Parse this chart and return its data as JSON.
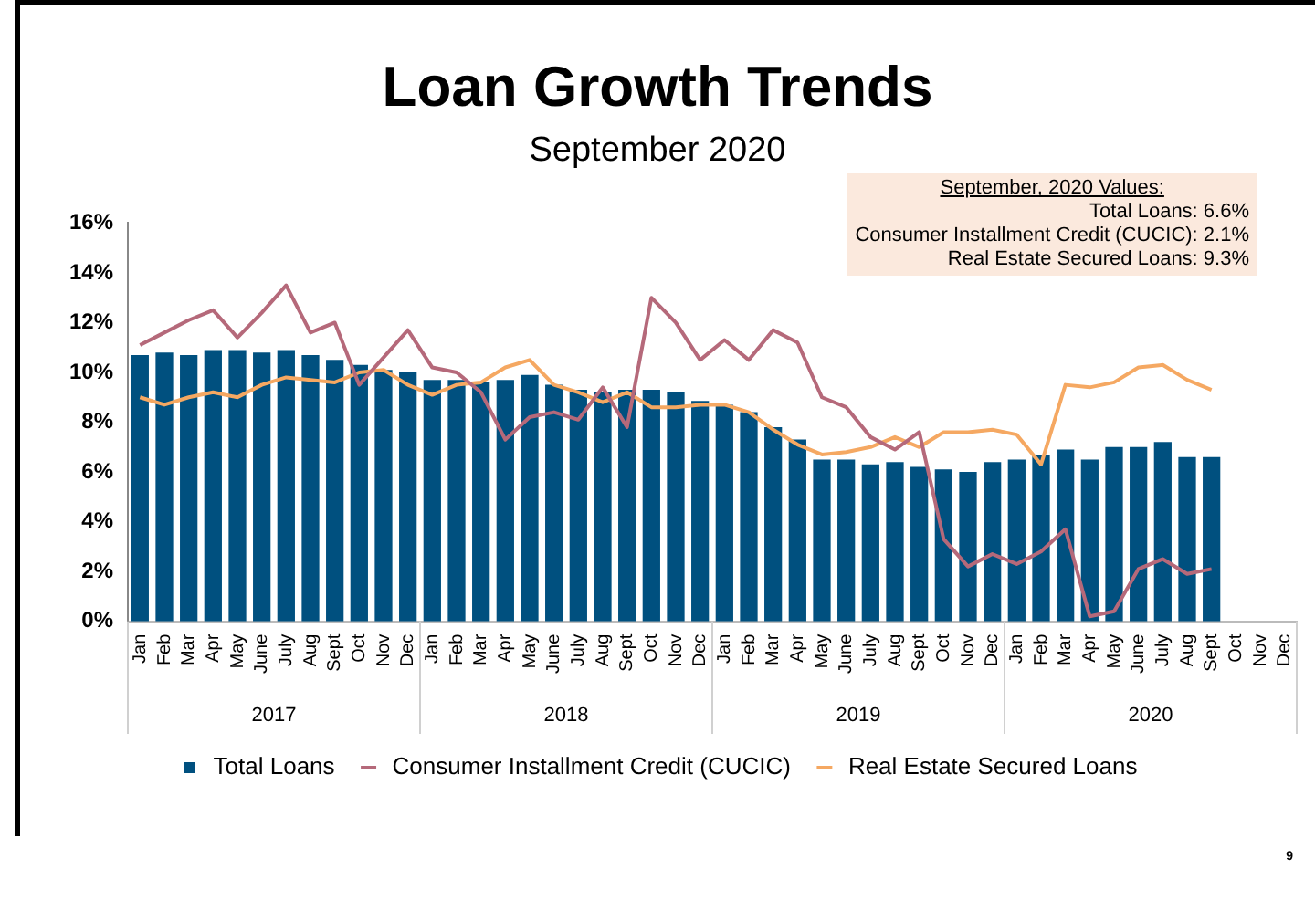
{
  "chart_data": {
    "type": "bar",
    "title": "Loan Growth Trends",
    "subtitle": "September 2020",
    "categories": [
      "Jan",
      "Feb",
      "Mar",
      "Apr",
      "May",
      "June",
      "July",
      "Aug",
      "Sept",
      "Oct",
      "Nov",
      "Dec",
      "Jan",
      "Feb",
      "Mar",
      "Apr",
      "May",
      "June",
      "July",
      "Aug",
      "Sept",
      "Oct",
      "Nov",
      "Dec",
      "Jan",
      "Feb",
      "Mar",
      "Apr",
      "May",
      "June",
      "July",
      "Aug",
      "Sept",
      "Oct",
      "Nov",
      "Dec",
      "Jan",
      "Feb",
      "Mar",
      "Apr",
      "May",
      "June",
      "July",
      "Aug",
      "Sept",
      "Oct",
      "Nov",
      "Dec"
    ],
    "series": [
      {
        "name": "Total Loans",
        "color": "#00507f",
        "values": [
          10.7,
          10.8,
          10.7,
          10.9,
          10.9,
          10.8,
          10.9,
          10.7,
          10.5,
          10.3,
          10.1,
          10.0,
          9.7,
          9.7,
          9.6,
          9.7,
          9.9,
          9.5,
          9.3,
          9.2,
          9.3,
          9.3,
          9.2,
          8.85,
          8.7,
          8.4,
          7.8,
          7.3,
          6.5,
          6.5,
          6.3,
          6.4,
          6.2,
          6.1,
          6.0,
          6.4,
          6.5,
          6.7,
          6.9,
          6.5,
          7.0,
          7.0,
          7.2,
          6.6,
          6.6,
          null,
          null,
          null
        ]
      },
      {
        "name": "Consumer Installment Credit (CUCIC)",
        "type": "line",
        "color": "#b5697a",
        "values": [
          11.1,
          11.6,
          12.1,
          12.5,
          11.4,
          12.4,
          13.5,
          11.6,
          12.0,
          9.5,
          10.6,
          11.7,
          10.2,
          10.0,
          9.2,
          7.3,
          8.2,
          8.4,
          8.1,
          9.4,
          7.8,
          13.0,
          12.0,
          10.5,
          11.3,
          10.5,
          11.7,
          11.2,
          9.0,
          8.6,
          7.4,
          6.9,
          7.6,
          3.3,
          2.2,
          2.7,
          2.3,
          2.8,
          3.7,
          0.2,
          0.4,
          2.1,
          2.5,
          1.9,
          2.1,
          null,
          null,
          null
        ]
      },
      {
        "name": "Real Estate Secured Loans",
        "type": "line",
        "color": "#f5a862",
        "values": [
          9.0,
          8.7,
          9.0,
          9.2,
          9.0,
          9.5,
          9.8,
          9.7,
          9.6,
          10.0,
          10.1,
          9.5,
          9.1,
          9.5,
          9.6,
          10.2,
          10.5,
          9.5,
          9.2,
          8.8,
          9.2,
          8.6,
          8.6,
          8.7,
          8.7,
          8.4,
          7.7,
          7.1,
          6.7,
          6.8,
          7.0,
          7.4,
          7.0,
          7.6,
          7.6,
          7.7,
          7.5,
          6.3,
          9.5,
          9.4,
          9.6,
          10.2,
          10.3,
          9.7,
          9.3,
          null,
          null,
          null
        ]
      }
    ],
    "ylim": [
      0,
      16
    ],
    "yticks": [
      {
        "value": 0,
        "label": "0%"
      },
      {
        "value": 2,
        "label": "2%"
      },
      {
        "value": 4,
        "label": "4%"
      },
      {
        "value": 6,
        "label": "6%"
      },
      {
        "value": 8,
        "label": "8%"
      },
      {
        "value": 10,
        "label": "10%"
      },
      {
        "value": 12,
        "label": "12%"
      },
      {
        "value": 14,
        "label": "14%"
      },
      {
        "value": 16,
        "label": "16%"
      }
    ],
    "legend": "bottom",
    "marker": "none",
    "annotations": [
      "September, 2020 Values:",
      "Total Loans: 6.6%",
      "Consumer Installment Credit (CUCIC): 2.1%",
      "Real Estate Secured Loans: 9.3%",
      "2017",
      "2018",
      "2019",
      "2020",
      "9"
    ]
  }
}
